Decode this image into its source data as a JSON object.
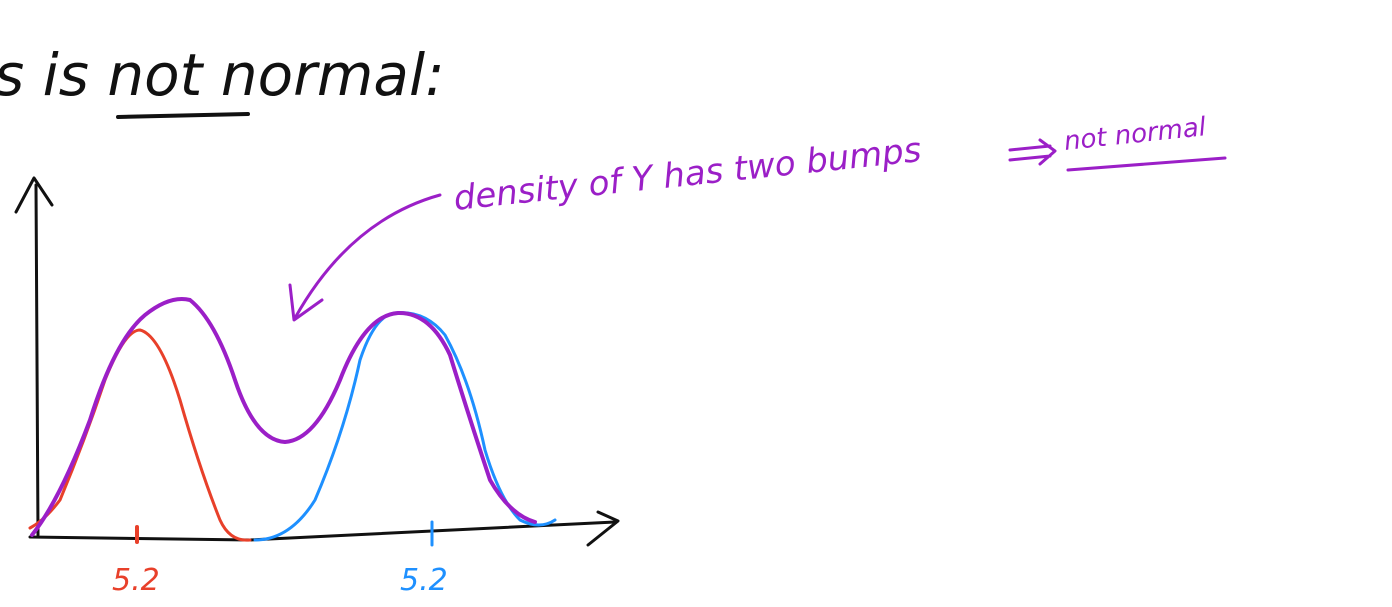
{
  "heading": "s is not normal:",
  "annotation": {
    "text": "density of Y has two bumps",
    "conclusion": "not normal"
  },
  "axis_labels": {
    "left_mean": "5.2",
    "right_mean": "5.2"
  }
}
